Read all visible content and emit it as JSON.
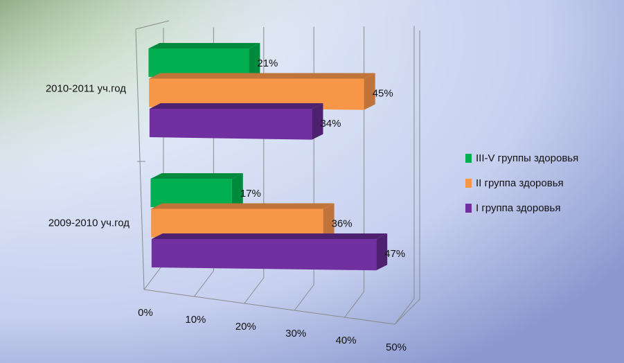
{
  "chart_data": {
    "type": "bar",
    "orientation": "horizontal-3d",
    "categories": [
      "2010-2011 уч.год",
      "2009-2010 уч.год"
    ],
    "series": [
      {
        "name": "III-V группы здоровья",
        "values": [
          21,
          17
        ],
        "labels": [
          "21%",
          "17%"
        ],
        "color": "#00B050",
        "side_color": "#008A3E"
      },
      {
        "name": "II группа здоровья",
        "values": [
          45,
          36
        ],
        "labels": [
          "45%",
          "36%"
        ],
        "color": "#F79646",
        "side_color": "#C0743A"
      },
      {
        "name": "I группа здоровья",
        "values": [
          34,
          47
        ],
        "labels": [
          "34%",
          "47%"
        ],
        "color": "#7030A0",
        "side_color": "#4E2170"
      }
    ],
    "x_ticks": [
      "0%",
      "10%",
      "20%",
      "30%",
      "40%",
      "50%"
    ],
    "xlim": [
      0,
      50
    ],
    "grid": true,
    "legend_position": "right"
  }
}
